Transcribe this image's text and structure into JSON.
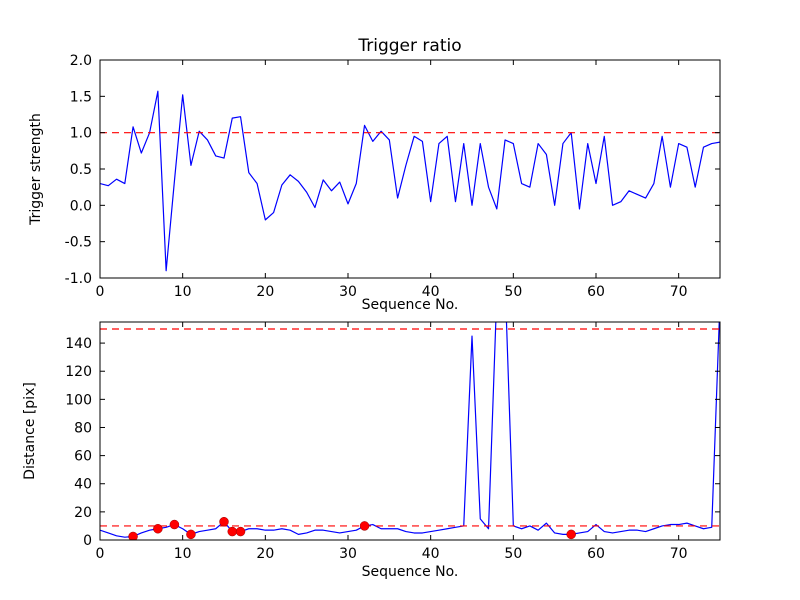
{
  "figure": {
    "background": "#ffffff",
    "spine_color": "#000000",
    "text_color": "#000000"
  },
  "chart_data": [
    {
      "name": "trigger-ratio-subplot",
      "type": "line",
      "title": "Trigger ratio",
      "xlabel": "Sequence No.",
      "ylabel": "Trigger strength",
      "xlim": [
        0,
        75
      ],
      "ylim": [
        -1.0,
        2.0
      ],
      "grid": false,
      "legend": "none",
      "xticks": [
        0,
        10,
        20,
        30,
        40,
        50,
        60,
        70
      ],
      "xtick_labels": [
        "0",
        "10",
        "20",
        "30",
        "40",
        "50",
        "60",
        "70"
      ],
      "yticks": [
        -1.0,
        -0.5,
        0.0,
        0.5,
        1.0,
        1.5,
        2.0
      ],
      "ytick_labels": [
        "-1.0",
        "-0.5",
        "0.0",
        "0.5",
        "1.0",
        "1.5",
        "2.0"
      ],
      "hlines": [
        {
          "y": 1.0,
          "color": "#ff0000",
          "style": "dashed"
        }
      ],
      "series": [
        {
          "name": "trigger-strength-line",
          "color": "#0000ff",
          "y": [
            0.3,
            0.27,
            0.36,
            0.3,
            1.08,
            0.72,
            1.0,
            1.57,
            -0.9,
            0.33,
            1.52,
            0.55,
            1.02,
            0.9,
            0.68,
            0.65,
            1.2,
            1.22,
            0.45,
            0.3,
            -0.2,
            -0.1,
            0.28,
            0.42,
            0.33,
            0.18,
            -0.03,
            0.35,
            0.2,
            0.32,
            0.02,
            0.3,
            1.1,
            0.88,
            1.02,
            0.9,
            0.1,
            0.55,
            0.95,
            0.88,
            0.05,
            0.85,
            0.95,
            0.05,
            0.85,
            0.0,
            0.85,
            0.25,
            -0.05,
            0.9,
            0.85,
            0.3,
            0.25,
            0.85,
            0.7,
            0.0,
            0.85,
            1.0,
            -0.05,
            0.85,
            0.3,
            0.95,
            0.0,
            0.05,
            0.2,
            0.15,
            0.1,
            0.3,
            0.95,
            0.25,
            0.85,
            0.8,
            0.25,
            0.8,
            0.85,
            0.87
          ]
        }
      ]
    },
    {
      "name": "distance-subplot",
      "type": "line",
      "title": "",
      "xlabel": "Sequence No.",
      "ylabel": "Distance [pix]",
      "xlim": [
        0,
        75
      ],
      "ylim": [
        0,
        155
      ],
      "grid": false,
      "legend": "none",
      "xticks": [
        0,
        10,
        20,
        30,
        40,
        50,
        60,
        70
      ],
      "xtick_labels": [
        "0",
        "10",
        "20",
        "30",
        "40",
        "50",
        "60",
        "70"
      ],
      "yticks": [
        0,
        20,
        40,
        60,
        80,
        100,
        120,
        140
      ],
      "ytick_labels": [
        "0",
        "20",
        "40",
        "60",
        "80",
        "100",
        "120",
        "140"
      ],
      "hlines": [
        {
          "y": 10,
          "color": "#ff0000",
          "style": "dashed"
        },
        {
          "y": 150,
          "color": "#ff0000",
          "style": "dashed"
        }
      ],
      "series": [
        {
          "name": "distance-line",
          "color": "#0000ff",
          "y": [
            7,
            5,
            3,
            2,
            2.5,
            5,
            7,
            8,
            9,
            11,
            8,
            4,
            6,
            7,
            8,
            13,
            6,
            6,
            8,
            8,
            7,
            7,
            8,
            7,
            4,
            5,
            7,
            7,
            6,
            5,
            6,
            7,
            10,
            11,
            8,
            8,
            8,
            6,
            5,
            5,
            6,
            7,
            8,
            9,
            10,
            145,
            15,
            8,
            175,
            185,
            10,
            8,
            10,
            7,
            12,
            5,
            4,
            4,
            5,
            6,
            11,
            6,
            5,
            6,
            7,
            7,
            6,
            8,
            10,
            11,
            11,
            12,
            10,
            8,
            9,
            170
          ]
        }
      ],
      "markers": {
        "name": "trigger-event-markers",
        "color": "#ff0000",
        "points": [
          [
            4,
            2.5
          ],
          [
            7,
            8
          ],
          [
            9,
            11
          ],
          [
            11,
            4
          ],
          [
            15,
            13
          ],
          [
            16,
            6
          ],
          [
            17,
            6
          ],
          [
            32,
            10
          ],
          [
            57,
            4
          ]
        ]
      }
    }
  ]
}
